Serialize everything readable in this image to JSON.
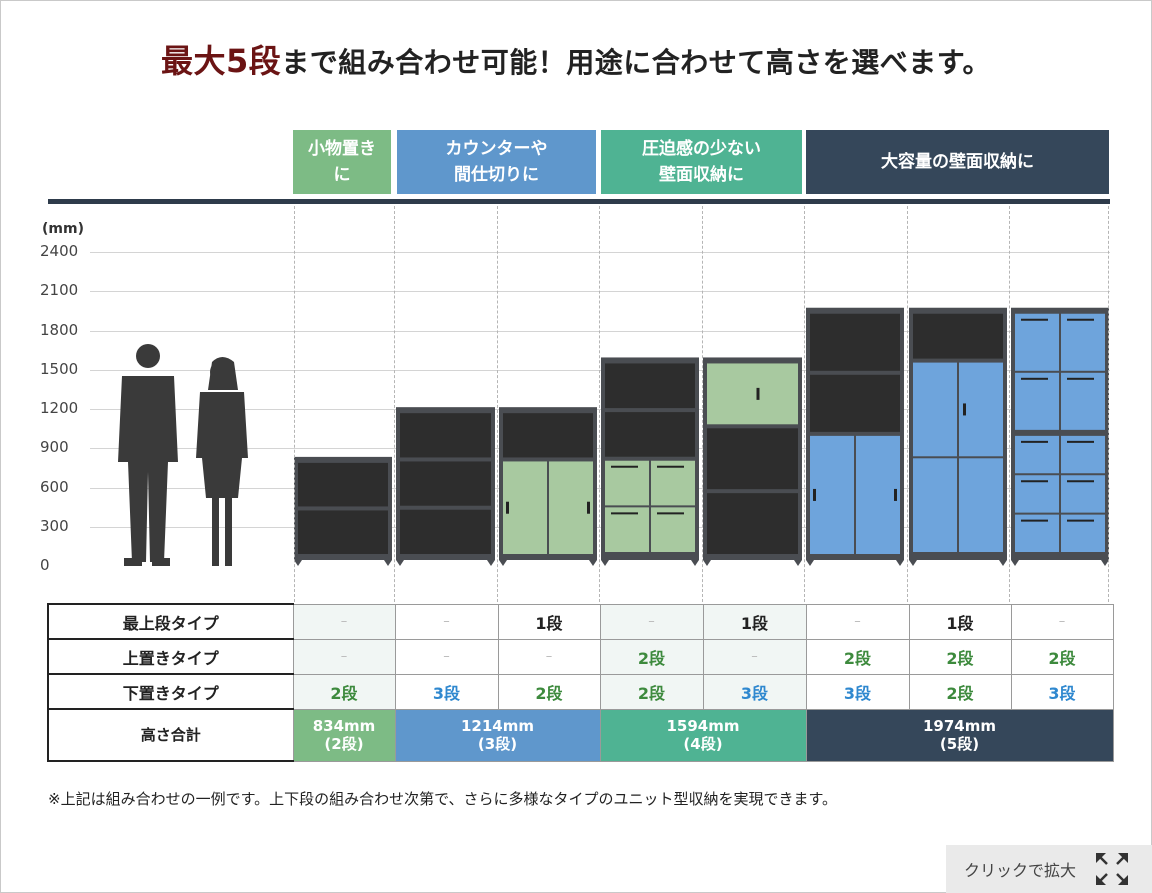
{
  "headline": {
    "accent": "最大5段",
    "rest": "まで組み合わせ可能！用途に合わせて高さを選べます。"
  },
  "categories": [
    {
      "line1": "小物置き",
      "line2": "に",
      "color": "#7dbb85"
    },
    {
      "line1": "カウンターや",
      "line2": "間仕切りに",
      "color": "#5f97cc"
    },
    {
      "line1": "圧迫感の少ない",
      "line2": "壁面収納に",
      "color": "#4fb393"
    },
    {
      "line1": "大容量の壁面収納に",
      "line2": "",
      "color": "#35475a"
    }
  ],
  "chart_data": {
    "type": "bar",
    "ylabel": "(mm)",
    "ylim": [
      0,
      2400
    ],
    "yticks": [
      "2400",
      "2100",
      "1800",
      "1500",
      "1200",
      "900",
      "600",
      "300",
      "0"
    ],
    "categories": [
      "2段",
      "3段",
      "3段",
      "4段",
      "4段",
      "5段",
      "5段",
      "5段"
    ],
    "values": [
      834,
      1214,
      1214,
      1594,
      1594,
      1974,
      1974,
      1974
    ]
  },
  "table": {
    "row_labels": [
      "最上段タイプ",
      "上置きタイプ",
      "下置きタイプ",
      "高さ合計"
    ],
    "rows": [
      [
        "–",
        "–",
        "1段",
        "–",
        "1段",
        "–",
        "1段",
        "–"
      ],
      [
        "–",
        "–",
        "–",
        "2段",
        "–",
        "2段",
        "2段",
        "2段"
      ],
      [
        "2段",
        "3段",
        "2段",
        "2段",
        "3段",
        "3段",
        "2段",
        "3段"
      ]
    ],
    "totals": [
      {
        "mm": "834mm",
        "dan": "(2段)"
      },
      {
        "mm": "1214mm",
        "dan": "(3段)"
      },
      {
        "mm": "1594mm",
        "dan": "(4段)"
      },
      {
        "mm": "1974mm",
        "dan": "(5段)"
      }
    ]
  },
  "note": "※上記は組み合わせの一例です。上下段の組み合わせ次第で、さらに多様なタイプのユニット型収納を実現できます。",
  "zoom_button": "クリックで拡大",
  "colors": {
    "cabinet_dark": "#2d2d2d",
    "cabinet_frame": "#4a4d52",
    "green_door": "#a8c9a0",
    "blue_door": "#6ea4dc",
    "navy": "#35475a"
  }
}
